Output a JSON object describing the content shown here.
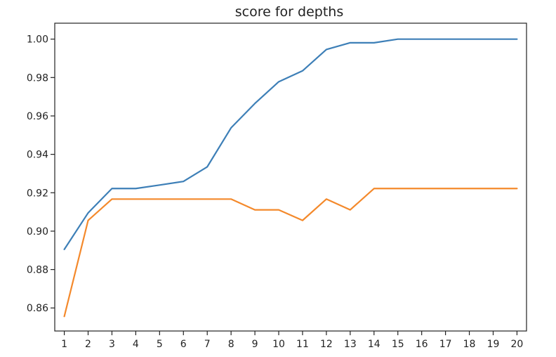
{
  "chart_data": {
    "type": "line",
    "title": "score for depths",
    "xlabel": "",
    "ylabel": "",
    "x": [
      1,
      2,
      3,
      4,
      5,
      6,
      7,
      8,
      9,
      10,
      11,
      12,
      13,
      14,
      15,
      16,
      17,
      18,
      19,
      20
    ],
    "xlim": [
      0.6,
      20.4
    ],
    "ylim": [
      0.848,
      1.0083
    ],
    "yticks": [
      "0.86",
      "0.88",
      "0.90",
      "0.92",
      "0.94",
      "0.96",
      "0.98",
      "1.00"
    ],
    "grid": false,
    "series": [
      {
        "color": "#3d7fb7",
        "values": [
          0.8905,
          0.9095,
          0.9222,
          0.9222,
          0.924,
          0.9259,
          0.9335,
          0.9538,
          0.9665,
          0.9778,
          0.9835,
          0.9946,
          0.9981,
          0.9981,
          1.0,
          1.0,
          1.0,
          1.0,
          1.0,
          1.0
        ]
      },
      {
        "color": "#f4892b",
        "values": [
          0.8556,
          0.9056,
          0.9167,
          0.9167,
          0.9167,
          0.9167,
          0.9167,
          0.9167,
          0.9111,
          0.9111,
          0.9056,
          0.9167,
          0.9111,
          0.9222,
          0.9222,
          0.9222,
          0.9222,
          0.9222,
          0.9222,
          0.9222
        ]
      }
    ]
  }
}
